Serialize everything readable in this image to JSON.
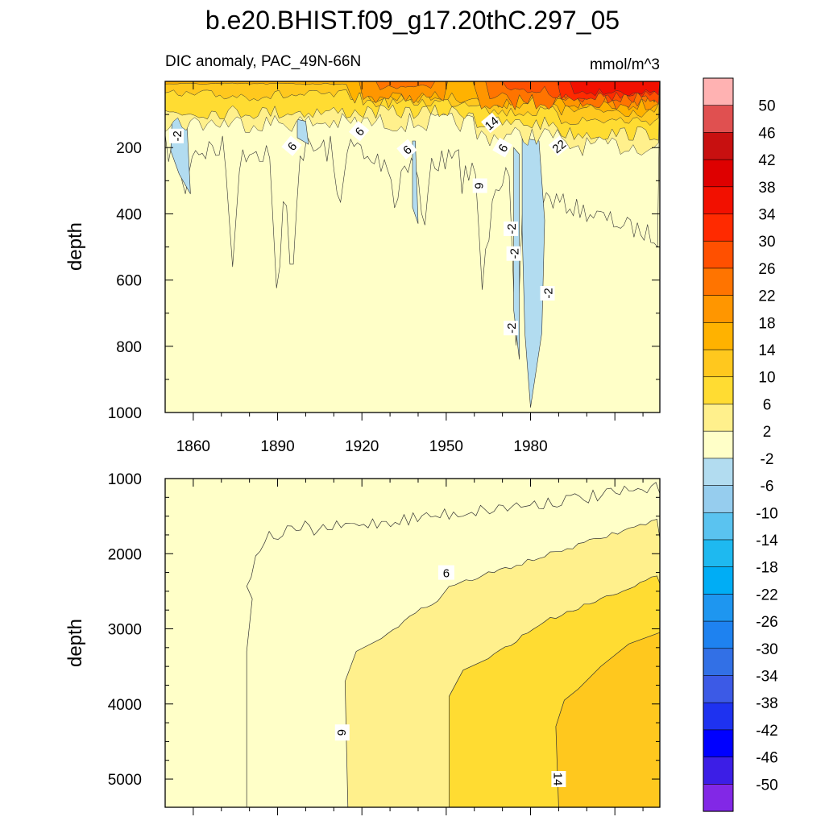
{
  "chart_data": {
    "type": "contour",
    "title": "b.e20.BHIST.f09_g17.20thC.297_05",
    "subtitle_left": "DIC anomaly, PAC_49N-66N",
    "units": "mmol/m^3",
    "x": {
      "range": [
        1850,
        2026
      ],
      "ticks": [
        1860,
        1890,
        1920,
        1950,
        1980
      ],
      "tick_labels": [
        "1860",
        "1890",
        "1920",
        "1950",
        "1980"
      ]
    },
    "panels": [
      {
        "ylabel": "depth",
        "ylim": [
          0,
          1000
        ],
        "yticks": [
          200,
          400,
          600,
          800,
          1000
        ],
        "ytick_labels": [
          "200",
          "400",
          "600",
          "800",
          "1000"
        ],
        "contour_labels": [
          "-2",
          "6",
          "6",
          "6",
          "14",
          "6",
          "6",
          "22",
          "-2",
          "-2",
          "-2",
          "-2"
        ]
      },
      {
        "ylabel": "depth",
        "ylim": [
          1000,
          5375
        ],
        "yticks": [
          1000,
          2000,
          3000,
          4000,
          5000
        ],
        "ytick_labels": [
          "1000",
          "2000",
          "3000",
          "4000",
          "5000"
        ],
        "contour_labels": [
          "6",
          "6",
          "14"
        ]
      }
    ],
    "colorbar": {
      "levels": [
        "50",
        "46",
        "42",
        "38",
        "34",
        "30",
        "26",
        "22",
        "18",
        "14",
        "10",
        "6",
        "2",
        "-2",
        "-6",
        "-10",
        "-14",
        "-18",
        "-22",
        "-26",
        "-30",
        "-34",
        "-38",
        "-42",
        "-46",
        "-50"
      ],
      "colors": [
        "#ffb2b2",
        "#e05050",
        "#c81010",
        "#de0000",
        "#f21000",
        "#ff2a00",
        "#ff5000",
        "#ff7400",
        "#ff9600",
        "#ffb200",
        "#ffc81e",
        "#ffdc32",
        "#fff08c",
        "#ffffc8",
        "#b2dcf0",
        "#96cdee",
        "#5ac3f0",
        "#1eb9f0",
        "#00adf5",
        "#1e96f0",
        "#1e82f0",
        "#3270e6",
        "#3c5ae6",
        "#1e32f0",
        "#0000ff",
        "#3c1ee6",
        "#8228e6"
      ]
    }
  }
}
